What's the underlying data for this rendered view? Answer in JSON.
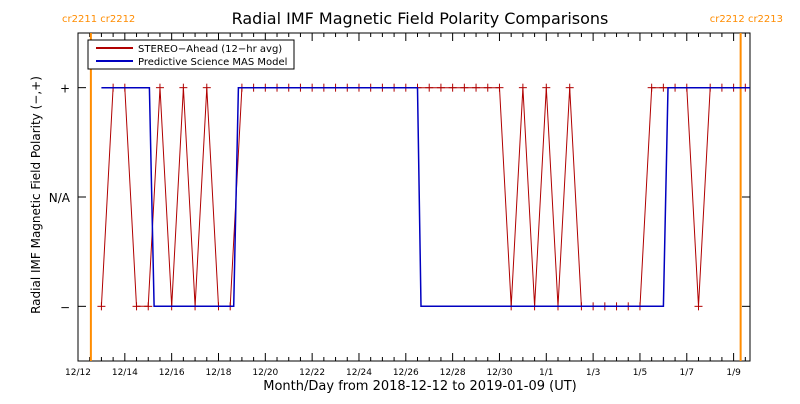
{
  "chart_data": {
    "type": "line",
    "title": "Radial IMF Magnetic Field Polarity Comparisons",
    "xlabel": "Month/Day from 2018-12-12 to 2019-01-09 (UT)",
    "ylabel": "Radial IMF Magnetic Field Polarity (−,+)",
    "x_units": "days since 2018-12-12 00:00 UT",
    "xlim": [
      0,
      28.7
    ],
    "ylim": [
      -1.5,
      1.5
    ],
    "y_levels": [
      -1,
      0,
      1
    ],
    "y_tick_labels": [
      "−",
      "N/A",
      "+"
    ],
    "x_ticks": [
      0,
      2,
      4,
      6,
      8,
      10,
      12,
      14,
      16,
      18,
      20,
      22,
      24,
      26,
      28
    ],
    "x_tick_labels": [
      "12/12",
      "12/14",
      "12/16",
      "12/18",
      "12/20",
      "12/22",
      "12/24",
      "12/26",
      "12/28",
      "12/30",
      "1/1",
      "1/3",
      "1/5",
      "1/7",
      "1/9"
    ],
    "grid": false,
    "legend_position": "top-left",
    "series": [
      {
        "name": "STEREO−Ahead (12−hr avg)",
        "color": "#b00000",
        "marker": "+",
        "x": [
          1.0,
          1.5,
          2.0,
          2.5,
          3.0,
          3.5,
          4.0,
          4.5,
          5.0,
          5.5,
          6.0,
          6.5,
          7.0,
          7.5,
          8.0,
          8.5,
          9.0,
          9.5,
          10.0,
          10.5,
          11.0,
          11.5,
          12.0,
          12.5,
          13.0,
          13.5,
          14.0,
          14.5,
          15.0,
          15.5,
          16.0,
          16.5,
          17.0,
          17.5,
          18.0,
          18.5,
          19.0,
          19.5,
          20.0,
          20.5,
          21.0,
          21.5,
          22.0,
          22.5,
          23.0,
          23.5,
          24.0,
          24.5,
          25.0,
          25.5,
          26.0,
          26.5,
          27.0,
          27.5,
          28.0,
          28.5
        ],
        "y": [
          -1,
          1,
          1,
          -1,
          -1,
          1,
          -1,
          1,
          -1,
          1,
          -1,
          -1,
          1,
          1,
          1,
          1,
          1,
          1,
          1,
          1,
          1,
          1,
          1,
          1,
          1,
          1,
          1,
          1,
          1,
          1,
          1,
          1,
          1,
          1,
          1,
          -1,
          1,
          -1,
          1,
          -1,
          1,
          -1,
          -1,
          -1,
          -1,
          -1,
          -1,
          1,
          1,
          1,
          1,
          -1,
          1,
          1,
          1,
          1
        ]
      },
      {
        "name": "Predictive Science MAS Model",
        "color": "#0000c0",
        "x": [
          1.0,
          3.05,
          3.25,
          6.65,
          6.85,
          14.5,
          14.65,
          25.0,
          25.2,
          28.7
        ],
        "y": [
          1,
          1,
          -1,
          -1,
          1,
          1,
          -1,
          -1,
          1,
          1
        ]
      }
    ],
    "carrington_markers": [
      {
        "x": 0.55,
        "label": "cr2211 cr2212",
        "color": "#ff8c00"
      },
      {
        "x": 28.3,
        "label": "cr2212 cr2213",
        "color": "#ff8c00"
      }
    ]
  }
}
